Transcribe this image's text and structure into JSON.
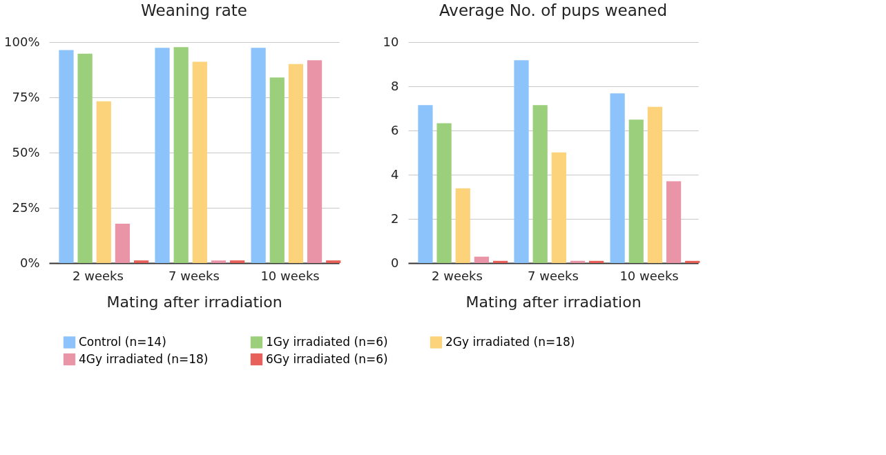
{
  "chart_data": [
    {
      "type": "bar",
      "title": "Weaning rate",
      "xlabel": "Mating after irradiation",
      "categories": [
        "2 weeks",
        "7 weeks",
        "10 weeks"
      ],
      "series": [
        {
          "name": "Control (n=14)",
          "color": "#8cc3fa",
          "values": [
            96.4,
            97.4,
            97.4
          ]
        },
        {
          "name": "1Gy irradiated (n=6)",
          "color": "#9ccf7c",
          "values": [
            94.8,
            97.7,
            84.0
          ]
        },
        {
          "name": "2Gy irradiated (n=18)",
          "color": "#fcd27a",
          "values": [
            73.2,
            91.1,
            90.1
          ]
        },
        {
          "name": "4Gy irradiated (n=18)",
          "color": "#ea94a8",
          "values": [
            17.8,
            1.2,
            91.8
          ]
        },
        {
          "name": "6Gy irradiated (n=6)",
          "color": "#e8605a",
          "values": [
            1.2,
            1.2,
            1.2
          ]
        }
      ],
      "ylim": [
        0,
        100
      ],
      "yticks": [
        {
          "value": 0,
          "label": "0%"
        },
        {
          "value": 25,
          "label": "25%"
        },
        {
          "value": 50,
          "label": "50%"
        },
        {
          "value": 75,
          "label": "75%"
        },
        {
          "value": 100,
          "label": "100%"
        }
      ],
      "grid": "y",
      "legend": "bottom"
    },
    {
      "type": "bar",
      "title": "Average No. of pups weaned",
      "xlabel": "Mating after irradiation",
      "categories": [
        "2 weeks",
        "7 weeks",
        "10 weeks"
      ],
      "series": [
        {
          "name": "Control (n=14)",
          "color": "#8cc3fa",
          "values": [
            7.15,
            9.18,
            7.68
          ]
        },
        {
          "name": "1Gy irradiated (n=6)",
          "color": "#9ccf7c",
          "values": [
            6.33,
            7.15,
            6.49
          ]
        },
        {
          "name": "2Gy irradiated (n=18)",
          "color": "#fcd27a",
          "values": [
            3.38,
            5.01,
            7.07
          ]
        },
        {
          "name": "4Gy irradiated (n=18)",
          "color": "#ea94a8",
          "values": [
            0.29,
            0.1,
            3.7
          ]
        },
        {
          "name": "6Gy irradiated (n=6)",
          "color": "#e8605a",
          "values": [
            0.1,
            0.1,
            0.1
          ]
        }
      ],
      "ylim": [
        0,
        10
      ],
      "yticks": [
        0,
        2,
        4,
        6,
        8,
        10
      ],
      "grid": "y"
    }
  ]
}
